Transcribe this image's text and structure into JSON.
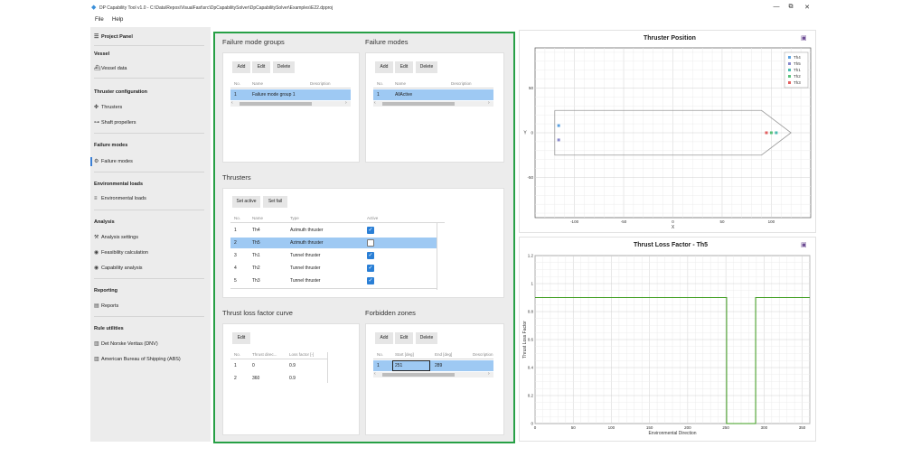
{
  "window": {
    "title": "DP Capability Tool v1.0 - C:\\Data\\Repos\\VisualFast\\src\\DpCapabilitySolver\\DpCapabilitySolver\\Examples\\E22.dpproj",
    "controls": [
      "—",
      "⧉",
      "✕"
    ]
  },
  "menu": [
    "File",
    "Help"
  ],
  "sidebar": {
    "project_panel": "Project Panel",
    "vessel_header": "Vessel",
    "vessel_data": "Vessel data",
    "thruster_config_header": "Thruster configuration",
    "thrusters": "Thrusters",
    "shaft_propellers": "Shaft propellers",
    "failure_modes_header": "Failure modes",
    "failure_modes": "Failure modes",
    "env_loads_header": "Environmental loads",
    "env_loads": "Environmental loads",
    "analysis_header": "Analysis",
    "analysis_settings": "Analysis settings",
    "feasibility_calc": "Feasibility calculation",
    "capability_analysis": "Capability analysis",
    "reporting_header": "Reporting",
    "reports": "Reports",
    "rule_utilities_header": "Rule utilities",
    "dnv": "Det Norske Veritas (DNV)",
    "abs": "American Bureau of Shipping (ABS)"
  },
  "failure_mode_groups": {
    "title": "Failure mode groups",
    "buttons": [
      "Add",
      "Edit",
      "Delete"
    ],
    "columns": [
      "No.",
      "Name",
      "Description"
    ],
    "rows": [
      {
        "no": "1",
        "name": "Failure mode group 1",
        "description": ""
      }
    ]
  },
  "failure_modes": {
    "title": "Failure modes",
    "buttons": [
      "Add",
      "Edit",
      "Delete"
    ],
    "columns": [
      "No.",
      "Name",
      "Description"
    ],
    "rows": [
      {
        "no": "1",
        "name": "AllActive",
        "description": ""
      }
    ]
  },
  "thrusters": {
    "title": "Thrusters",
    "buttons": [
      "Set active",
      "Set fail"
    ],
    "columns": [
      "No.",
      "Name",
      "Type",
      "Active"
    ],
    "rows": [
      {
        "no": "1",
        "name": "Th4",
        "type": "Azimuth thruster",
        "active": true
      },
      {
        "no": "2",
        "name": "Th5",
        "type": "Azimuth thruster",
        "active": false
      },
      {
        "no": "3",
        "name": "Th1",
        "type": "Tunnel thruster",
        "active": true
      },
      {
        "no": "4",
        "name": "Th2",
        "type": "Tunnel thruster",
        "active": true
      },
      {
        "no": "5",
        "name": "Th3",
        "type": "Tunnel thruster",
        "active": true
      }
    ],
    "selected_row": 2
  },
  "thrust_loss_curve": {
    "title": "Thrust loss factor curve",
    "buttons": [
      "Edit"
    ],
    "columns": [
      "No.",
      "Thrust direc...",
      "Loss factor [-]"
    ],
    "rows": [
      {
        "no": "1",
        "direction": "0",
        "factor": "0.9"
      },
      {
        "no": "2",
        "direction": "360",
        "factor": "0.9"
      }
    ]
  },
  "forbidden_zones": {
    "title": "Forbidden zones",
    "buttons": [
      "Add",
      "Edit",
      "Delete"
    ],
    "columns": [
      "No.",
      "Start [deg]",
      "End [deg]",
      "Description"
    ],
    "rows": [
      {
        "no": "1",
        "start": "251",
        "end": "289",
        "description": ""
      }
    ]
  },
  "thruster_position_plot": {
    "title": "Thruster Position",
    "save_icon": "save-icon",
    "xticks": [
      "-100",
      "-50",
      "0",
      "50",
      "100"
    ],
    "yticks": [
      "50",
      "0",
      "-50"
    ],
    "xlabel": "X",
    "ylabel": "Y",
    "legend": [
      {
        "name": "Th4",
        "color": "#5aa0e0"
      },
      {
        "name": "Th5",
        "color": "#8888cc"
      },
      {
        "name": "Th1",
        "color": "#4bbbb0"
      },
      {
        "name": "Th2",
        "color": "#58c27a"
      },
      {
        "name": "Th3",
        "color": "#e26060"
      }
    ]
  },
  "thrust_loss_plot": {
    "title": "Thrust Loss Factor - Th5",
    "save_icon": "save-icon",
    "xticks": [
      "0",
      "50",
      "100",
      "150",
      "200",
      "250",
      "300",
      "350"
    ],
    "yticks": [
      "0",
      "0.2",
      "0.4",
      "0.6",
      "0.8",
      "1",
      "1.2"
    ],
    "xlabel": "Environmental Direction",
    "ylabel": "Thrust Loss Factor",
    "line_color": "#3c9c1c"
  },
  "chart_data": [
    {
      "type": "scatter",
      "title": "Thruster Position",
      "xlabel": "X",
      "ylabel": "Y",
      "xlim": [
        -140,
        140
      ],
      "ylim": [
        -95,
        95
      ],
      "grid": true,
      "legend_position": "top-right",
      "series": [
        {
          "name": "Th4",
          "x": [
            -116
          ],
          "y": [
            8
          ]
        },
        {
          "name": "Th5",
          "x": [
            -116
          ],
          "y": [
            -8
          ]
        },
        {
          "name": "Th1",
          "x": [
            105
          ],
          "y": [
            0
          ]
        },
        {
          "name": "Th2",
          "x": [
            100
          ],
          "y": [
            0
          ]
        },
        {
          "name": "Th3",
          "x": [
            95
          ],
          "y": [
            0
          ]
        }
      ],
      "hull_outline": {
        "x": [
          -120,
          90,
          120,
          90,
          -120,
          -120
        ],
        "y": [
          25,
          25,
          0,
          -25,
          -25,
          25
        ]
      }
    },
    {
      "type": "line",
      "title": "Thrust Loss Factor - Th5",
      "xlabel": "Environmental Direction",
      "ylabel": "Thrust Loss Factor",
      "xlim": [
        0,
        360
      ],
      "ylim": [
        0,
        1.2
      ],
      "grid": true,
      "series": [
        {
          "x": [
            0,
            251,
            251,
            289,
            289,
            360
          ],
          "y": [
            0.9,
            0.9,
            0,
            0,
            0.9,
            0.9
          ]
        }
      ]
    }
  ]
}
